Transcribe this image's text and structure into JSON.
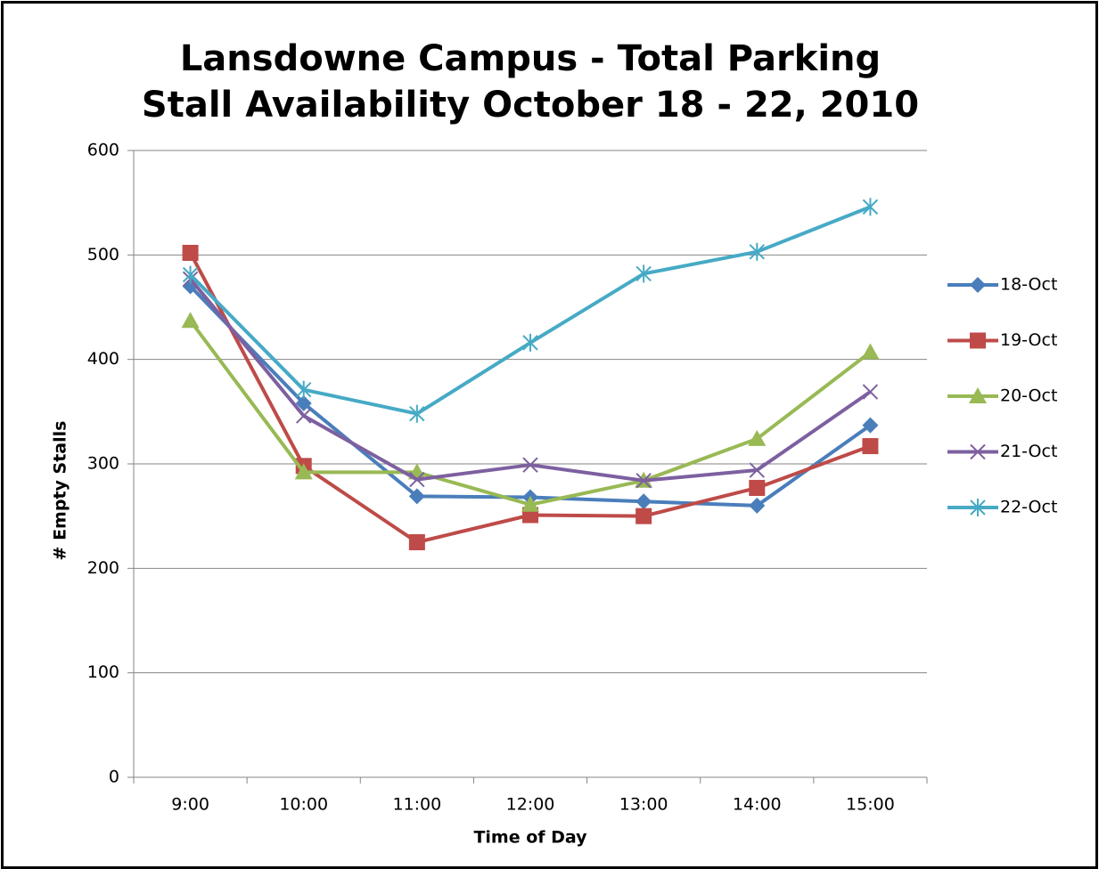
{
  "chart_data": {
    "type": "line",
    "title": "Lansdowne Campus - Total Parking Stall Availability October 18 - 22, 2010",
    "x_label": "Time of Day",
    "y_label": "# Empty Stalls",
    "categories": [
      "9:00",
      "10:00",
      "11:00",
      "12:00",
      "13:00",
      "14:00",
      "15:00"
    ],
    "series": [
      {
        "name": "18-Oct",
        "color": "#4a7ebb",
        "marker": "diamond",
        "values": [
          470,
          358,
          269,
          268,
          264,
          260,
          337
        ]
      },
      {
        "name": "19-Oct",
        "color": "#be4b48",
        "marker": "square",
        "values": [
          502,
          298,
          225,
          251,
          250,
          277,
          317
        ]
      },
      {
        "name": "20-Oct",
        "color": "#98b954",
        "marker": "triangle",
        "values": [
          437,
          292,
          292,
          261,
          284,
          324,
          407
        ]
      },
      {
        "name": "21-Oct",
        "color": "#7d60a0",
        "marker": "x",
        "values": [
          477,
          346,
          285,
          299,
          284,
          294,
          369
        ]
      },
      {
        "name": "22-Oct",
        "color": "#46aac5",
        "marker": "star",
        "values": [
          481,
          371,
          348,
          416,
          482,
          503,
          546
        ]
      }
    ],
    "ylim": [
      0,
      600
    ],
    "yticks": [
      0,
      100,
      200,
      300,
      400,
      500,
      600
    ],
    "grid": true,
    "legend": "right"
  }
}
